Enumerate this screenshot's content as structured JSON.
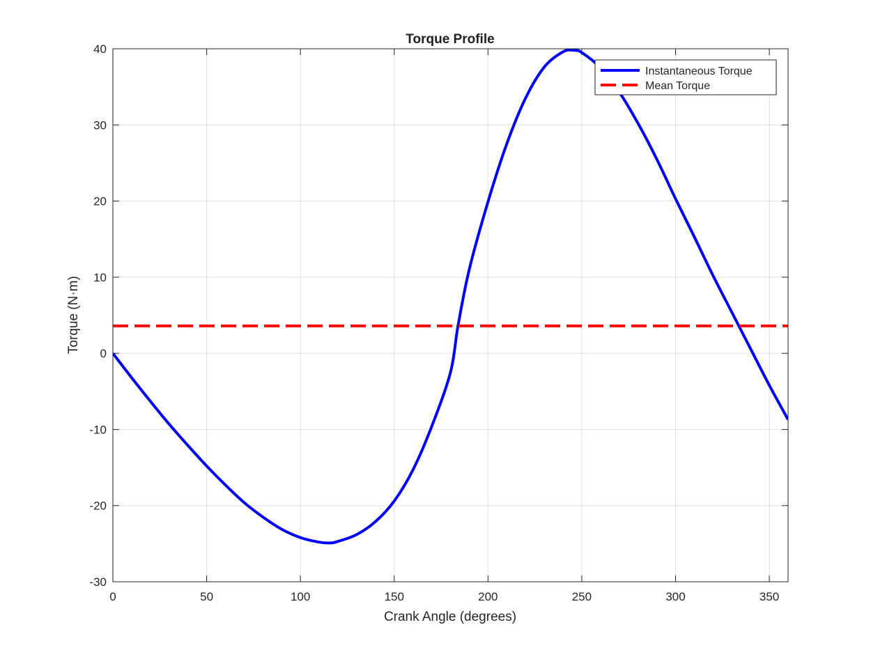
{
  "chart_data": {
    "type": "line",
    "title": "Torque Profile",
    "xlabel": "Crank Angle (degrees)",
    "ylabel": "Torque (N·m)",
    "xlim": [
      0,
      360
    ],
    "ylim": [
      -30,
      40
    ],
    "xticks": [
      0,
      50,
      100,
      150,
      200,
      250,
      300,
      350
    ],
    "yticks": [
      -30,
      -20,
      -10,
      0,
      10,
      20,
      30,
      40
    ],
    "xtick_labels": [
      "0",
      "50",
      "100",
      "150",
      "200",
      "250",
      "300",
      "350"
    ],
    "ytick_labels": [
      "-30",
      "-20",
      "-10",
      "0",
      "10",
      "20",
      "30",
      "40"
    ],
    "grid": true,
    "legend_position": "top-right",
    "series": [
      {
        "name": "Instantaneous Torque",
        "color": "#0000ff",
        "style": "solid",
        "x": [
          0,
          10,
          20,
          30,
          40,
          50,
          60,
          70,
          80,
          90,
          100,
          110,
          116,
          120,
          130,
          140,
          150,
          160,
          170,
          180,
          184,
          190,
          200,
          210,
          220,
          230,
          240,
          246,
          250,
          260,
          270,
          280,
          290,
          300,
          310,
          320,
          330,
          340,
          350,
          360
        ],
        "y": [
          0,
          -3.2,
          -6.3,
          -9.3,
          -12.1,
          -14.8,
          -17.3,
          -19.6,
          -21.5,
          -23.1,
          -24.2,
          -24.8,
          -24.9,
          -24.7,
          -23.8,
          -22.1,
          -19.4,
          -15.3,
          -9.6,
          -2.5,
          3.6,
          11,
          19.9,
          27.5,
          33.5,
          37.6,
          39.6,
          39.8,
          39.5,
          37.5,
          34.3,
          30.2,
          25.5,
          20.3,
          15.3,
          10.2,
          5.4,
          0.6,
          -4.2,
          -8.7
        ]
      },
      {
        "name": "Mean Torque",
        "color": "#ff0000",
        "style": "dashed",
        "x": [
          0,
          360
        ],
        "y": [
          3.6,
          3.6
        ]
      }
    ]
  }
}
